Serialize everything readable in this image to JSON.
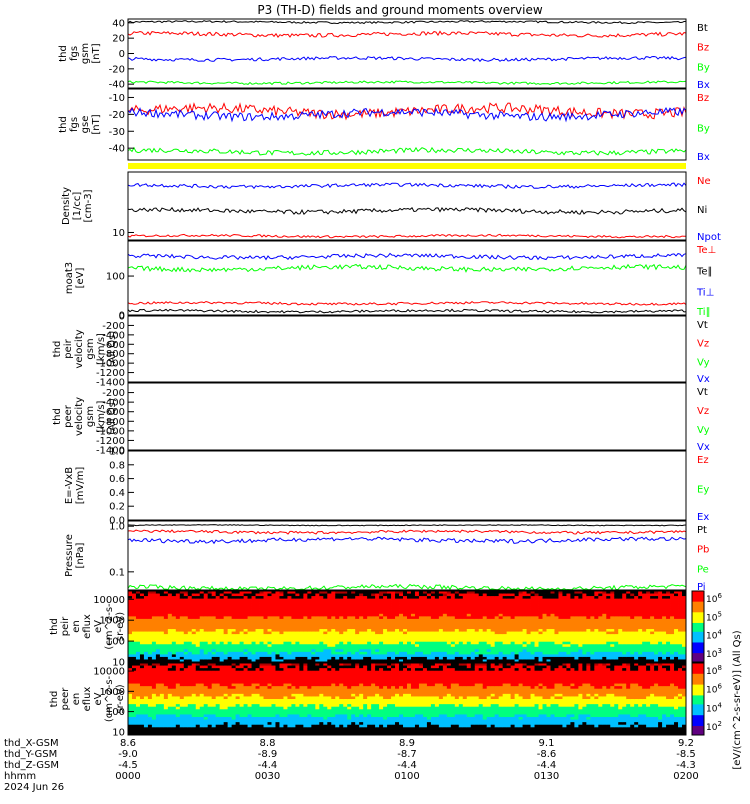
{
  "title": "P3 (TH-D) fields and ground moments overview",
  "colors": {
    "black": "#000000",
    "red": "#ff0000",
    "green": "#00ff00",
    "blue": "#0000ff",
    "yellow": "#ffff00"
  },
  "chart_data": [
    {
      "id": "fgs_gsm",
      "type": "line",
      "ylabel": [
        "thd",
        "fgs",
        "gsm",
        "[nT]"
      ],
      "ylim": [
        -45,
        45
      ],
      "log": false,
      "yticks": [
        40,
        20,
        0,
        -20,
        -40
      ],
      "series": [
        {
          "name": "Bt",
          "color": "black",
          "base": 41,
          "noise": 1.2
        },
        {
          "name": "Bz",
          "color": "red",
          "base": 25,
          "noise": 2.5
        },
        {
          "name": "By",
          "color": "green",
          "base": -38,
          "noise": 1.5
        },
        {
          "name": "Bx",
          "color": "blue",
          "base": -7,
          "noise": 2
        }
      ]
    },
    {
      "id": "fgs_gse",
      "type": "line",
      "ylabel": [
        "thd",
        "fgs",
        "gse",
        "[nT]"
      ],
      "ylim": [
        -47,
        -5
      ],
      "log": false,
      "yticks": [
        -10,
        -20,
        -30,
        -40
      ],
      "labels_only": [
        "Bz",
        "By",
        "Bx"
      ],
      "series": [
        {
          "name": "Bz",
          "color": "red",
          "base": -18,
          "noise": 3
        },
        {
          "name": "By",
          "color": "green",
          "base": -42,
          "noise": 1.5
        },
        {
          "name": "Bx",
          "color": "blue",
          "base": -20,
          "noise": 2.5
        }
      ]
    },
    {
      "id": "density",
      "type": "line",
      "ylabel": [
        "Density",
        "[1/cc]",
        "[cm-3]"
      ],
      "ylim": [
        8,
        60
      ],
      "log": true,
      "yticks": [
        10
      ],
      "series": [
        {
          "name": "Ne",
          "color": "red",
          "base": 9,
          "noise": 0.3
        },
        {
          "name": "Ni",
          "color": "black",
          "base": 19,
          "noise": 1.2
        },
        {
          "name": "Npot",
          "color": "blue",
          "base": 40,
          "noise": 2
        }
      ]
    },
    {
      "id": "temperature",
      "type": "line",
      "ylabel": [
        "moat3",
        "[eV]"
      ],
      "ylim": [
        0,
        190
      ],
      "log": false,
      "yticks": [
        100,
        0
      ],
      "series": [
        {
          "name": "Te⊥",
          "color": "red",
          "base": 30,
          "noise": 3
        },
        {
          "name": "Te∥",
          "color": "black",
          "base": 10,
          "noise": 3
        },
        {
          "name": "Ti⊥",
          "color": "blue",
          "base": 150,
          "noise": 5
        },
        {
          "name": "Ti∥",
          "color": "green",
          "base": 120,
          "noise": 6
        }
      ]
    },
    {
      "id": "peir_velocity",
      "type": "line",
      "ylabel": [
        "thd",
        "peir",
        "velocity",
        "gsm",
        "[km/s]",
        "(All Qs)"
      ],
      "ylim": [
        -1400,
        0
      ],
      "log": false,
      "yticks": [
        0,
        -200,
        -400,
        -600,
        -800,
        -1000,
        -1200,
        -1400
      ],
      "series": [
        {
          "name": "Vt",
          "color": "black"
        },
        {
          "name": "Vz",
          "color": "red"
        },
        {
          "name": "Vy",
          "color": "green"
        },
        {
          "name": "Vx",
          "color": "blue"
        }
      ]
    },
    {
      "id": "peer_velocity",
      "type": "line",
      "ylabel": [
        "thd",
        "peer",
        "velocity",
        "gsm",
        "[km/s]",
        "(All Qs)"
      ],
      "ylim": [
        -1400,
        0
      ],
      "log": false,
      "yticks": [
        -200,
        -400,
        -600,
        -800,
        -1000,
        -1200,
        -1400
      ],
      "series": [
        {
          "name": "Vt",
          "color": "black"
        },
        {
          "name": "Vz",
          "color": "red"
        },
        {
          "name": "Vy",
          "color": "green"
        },
        {
          "name": "Vx",
          "color": "blue"
        }
      ]
    },
    {
      "id": "efield",
      "type": "line",
      "ylabel": [
        "E=-VxB",
        "[mV/m]"
      ],
      "ylim": [
        0,
        1
      ],
      "log": false,
      "yticks": [
        1.0,
        0.8,
        0.6,
        0.4,
        0.2,
        0.0
      ],
      "series": [
        {
          "name": "Ez",
          "color": "red"
        },
        {
          "name": "Ey",
          "color": "green"
        },
        {
          "name": "Ex",
          "color": "blue"
        }
      ]
    },
    {
      "id": "pressure",
      "type": "line",
      "ylabel": [
        "Pressure",
        "[nPa]"
      ],
      "ylim": [
        0.04,
        1.3
      ],
      "log": true,
      "yticks": [
        1.0,
        0.1
      ],
      "series": [
        {
          "name": "Pt",
          "color": "black",
          "base": 1.05,
          "noise": 0.02
        },
        {
          "name": "Pb",
          "color": "red",
          "base": 0.75,
          "noise": 0.05
        },
        {
          "name": "Pe",
          "color": "green",
          "base": 0.045,
          "noise": 0.005
        },
        {
          "name": "Pi",
          "color": "blue",
          "base": 0.5,
          "noise": 0.05
        }
      ]
    },
    {
      "id": "peir_spec",
      "type": "heatmap",
      "ylabel": [
        "thd",
        "peir",
        "en",
        "eflux",
        "eV",
        "(cm^2-s-",
        "sr-eV)"
      ],
      "ylim": [
        10,
        25000
      ],
      "log": true,
      "yticks": [
        10000,
        1000,
        100,
        10
      ],
      "colorbar": {
        "ticks": [
          "10^6",
          "10^5",
          "10^4",
          "10^3"
        ]
      }
    },
    {
      "id": "peer_spec",
      "type": "heatmap",
      "ylabel": [
        "thd",
        "peer",
        "en",
        "eflux",
        "eV",
        "(cm^2-s-",
        "sr-eV)"
      ],
      "ylim": [
        7,
        25000
      ],
      "log": true,
      "yticks": [
        10000,
        1000,
        100,
        10
      ],
      "colorbar": {
        "ticks": [
          "10^8",
          "10^6",
          "10^4",
          "10^2"
        ]
      }
    }
  ],
  "colorbar_label": "[eV/(cm^2-s-sr-eV)] (All Qs)",
  "xaxis": {
    "rows": [
      {
        "label": "thd_X-GSM",
        "values": [
          "8.6",
          "8.8",
          "8.9",
          "9.1",
          "9.2"
        ]
      },
      {
        "label": "thd_Y-GSM",
        "values": [
          "-9.0",
          "-8.9",
          "-8.7",
          "-8.6",
          "-8.5"
        ]
      },
      {
        "label": "thd_Z-GSM",
        "values": [
          "-4.5",
          "-4.4",
          "-4.4",
          "-4.4",
          "-4.3"
        ]
      },
      {
        "label": "hhmm",
        "values": [
          "0000",
          "0030",
          "0100",
          "0130",
          "0200"
        ]
      }
    ],
    "date": "2024 Jun 26"
  }
}
